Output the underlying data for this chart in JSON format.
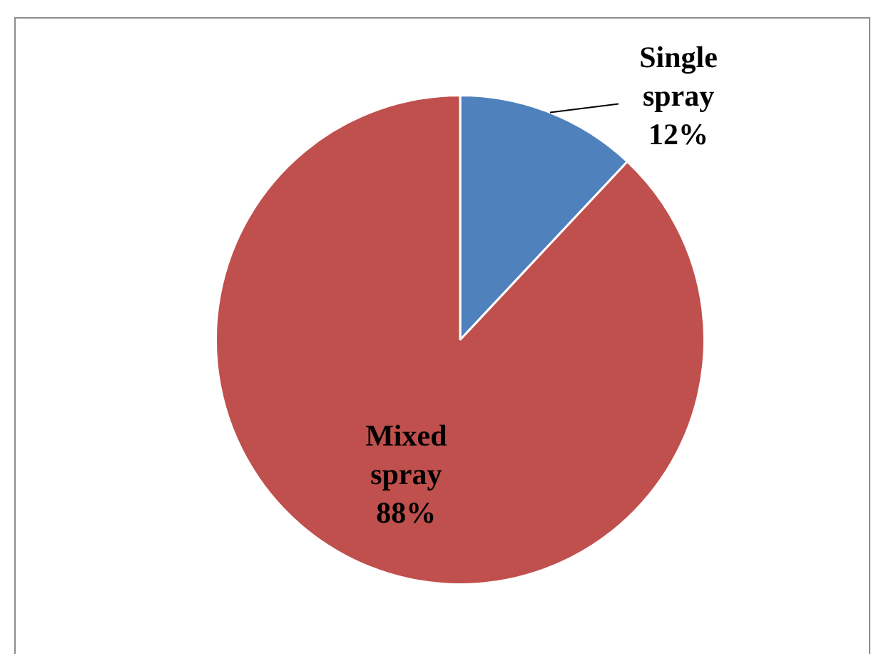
{
  "chart_data": {
    "type": "pie",
    "categories": [
      "Single spray",
      "Mixed spray"
    ],
    "values": [
      12,
      88
    ],
    "value_labels": [
      "12%",
      "88%"
    ],
    "colors": [
      "#4f81bd",
      "#c0504d"
    ],
    "legend": false
  }
}
